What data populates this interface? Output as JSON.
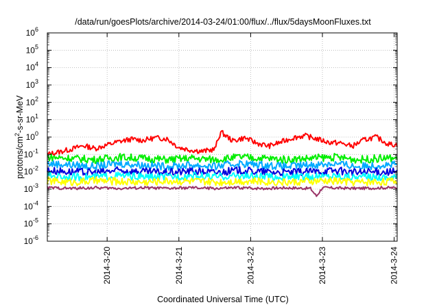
{
  "chart_data": {
    "type": "line",
    "title": "/data/run/goesPlots/archive/2014-03-24/01:00/flux/../flux/5daysMoonFluxes.txt",
    "xlabel": "Coordinated Universal Time (UTC)",
    "ylabel": {
      "base": "protons/cm",
      "sup": "2",
      "rest": "-s-sr-MeV"
    },
    "y_scale": "log",
    "ylim": [
      1e-06,
      1000000.0
    ],
    "x_range_days": [
      "2014-03-19 04:00",
      "2014-03-24 01:00"
    ],
    "y_ticks": [
      {
        "value": 1e-06,
        "base": "10",
        "exp": "-6"
      },
      {
        "value": 1e-05,
        "base": "10",
        "exp": "-5"
      },
      {
        "value": 0.0001,
        "base": "10",
        "exp": "-4"
      },
      {
        "value": 0.001,
        "base": "10",
        "exp": "-3"
      },
      {
        "value": 0.01,
        "base": "10",
        "exp": "-2"
      },
      {
        "value": 0.1,
        "base": "10",
        "exp": "-1"
      },
      {
        "value": 1.0,
        "base": "10",
        "exp": "0"
      },
      {
        "value": 10.0,
        "base": "10",
        "exp": "1"
      },
      {
        "value": 100.0,
        "base": "10",
        "exp": "2"
      },
      {
        "value": 1000.0,
        "base": "10",
        "exp": "3"
      },
      {
        "value": 10000.0,
        "base": "10",
        "exp": "4"
      },
      {
        "value": 100000.0,
        "base": "10",
        "exp": "5"
      },
      {
        "value": 1000000.0,
        "base": "10",
        "exp": "6"
      }
    ],
    "x_ticks": [
      {
        "label": "2014-3-20",
        "date": "2014-03-20"
      },
      {
        "label": "2014-3-21",
        "date": "2014-03-21"
      },
      {
        "label": "2014-3-22",
        "date": "2014-03-22"
      },
      {
        "label": "2014-3-23",
        "date": "2014-03-23"
      },
      {
        "label": "2014-3-24",
        "date": "2014-03-24"
      }
    ],
    "grid": true,
    "series": [
      {
        "color": "#ff0000",
        "points": [
          [
            "2014-03-19 04:00",
            0.1
          ],
          [
            "2014-03-19 08:00",
            0.14
          ],
          [
            "2014-03-19 12:00",
            0.2
          ],
          [
            "2014-03-19 16:00",
            0.32
          ],
          [
            "2014-03-19 20:00",
            0.22
          ],
          [
            "2014-03-20 00:00",
            0.35
          ],
          [
            "2014-03-20 04:00",
            0.55
          ],
          [
            "2014-03-20 08:00",
            0.75
          ],
          [
            "2014-03-20 12:00",
            0.65
          ],
          [
            "2014-03-20 16:00",
            0.9
          ],
          [
            "2014-03-20 20:00",
            0.8
          ],
          [
            "2014-03-21 00:00",
            0.25
          ],
          [
            "2014-03-21 04:00",
            0.18
          ],
          [
            "2014-03-21 08:00",
            0.15
          ],
          [
            "2014-03-21 12:00",
            0.2
          ],
          [
            "2014-03-21 14:00",
            2.0
          ],
          [
            "2014-03-21 18:00",
            0.6
          ],
          [
            "2014-03-21 22:00",
            0.9
          ],
          [
            "2014-03-22 02:00",
            0.45
          ],
          [
            "2014-03-22 06:00",
            0.3
          ],
          [
            "2014-03-22 10:00",
            0.5
          ],
          [
            "2014-03-22 14:00",
            0.9
          ],
          [
            "2014-03-22 18:00",
            1.2
          ],
          [
            "2014-03-22 22:00",
            0.8
          ],
          [
            "2014-03-23 02:00",
            0.5
          ],
          [
            "2014-03-23 06:00",
            0.45
          ],
          [
            "2014-03-23 10:00",
            0.3
          ],
          [
            "2014-03-23 14:00",
            0.7
          ],
          [
            "2014-03-23 18:00",
            1.0
          ],
          [
            "2014-03-23 22:00",
            0.4
          ],
          [
            "2014-03-24 01:00",
            0.35
          ]
        ]
      },
      {
        "color": "#00ee00",
        "points": [
          [
            "2014-03-19 04:00",
            0.07
          ],
          [
            "2014-03-19 12:00",
            0.06
          ],
          [
            "2014-03-19 20:00",
            0.05
          ],
          [
            "2014-03-20 04:00",
            0.07
          ],
          [
            "2014-03-20 12:00",
            0.06
          ],
          [
            "2014-03-20 20:00",
            0.05
          ],
          [
            "2014-03-21 04:00",
            0.06
          ],
          [
            "2014-03-21 12:00",
            0.05
          ],
          [
            "2014-03-21 20:00",
            0.07
          ],
          [
            "2014-03-22 04:00",
            0.06
          ],
          [
            "2014-03-22 12:00",
            0.05
          ],
          [
            "2014-03-22 20:00",
            0.06
          ],
          [
            "2014-03-23 04:00",
            0.07
          ],
          [
            "2014-03-23 12:00",
            0.05
          ],
          [
            "2014-03-23 20:00",
            0.06
          ],
          [
            "2014-03-24 01:00",
            0.06
          ]
        ]
      },
      {
        "color": "#00aaff",
        "points": [
          [
            "2014-03-19 04:00",
            0.03
          ],
          [
            "2014-03-19 12:00",
            0.025
          ],
          [
            "2014-03-19 20:00",
            0.02
          ],
          [
            "2014-03-20 04:00",
            0.03
          ],
          [
            "2014-03-20 12:00",
            0.025
          ],
          [
            "2014-03-20 20:00",
            0.02
          ],
          [
            "2014-03-21 04:00",
            0.025
          ],
          [
            "2014-03-21 12:00",
            0.02
          ],
          [
            "2014-03-21 20:00",
            0.03
          ],
          [
            "2014-03-22 04:00",
            0.025
          ],
          [
            "2014-03-22 12:00",
            0.02
          ],
          [
            "2014-03-22 20:00",
            0.025
          ],
          [
            "2014-03-23 04:00",
            0.03
          ],
          [
            "2014-03-23 12:00",
            0.02
          ],
          [
            "2014-03-23 20:00",
            0.025
          ],
          [
            "2014-03-24 01:00",
            0.025
          ]
        ]
      },
      {
        "color": "#0000dd",
        "points": [
          [
            "2014-03-19 04:00",
            0.012
          ],
          [
            "2014-03-19 12:00",
            0.01
          ],
          [
            "2014-03-19 20:00",
            0.009
          ],
          [
            "2014-03-20 04:00",
            0.012
          ],
          [
            "2014-03-20 12:00",
            0.01
          ],
          [
            "2014-03-20 20:00",
            0.009
          ],
          [
            "2014-03-21 04:00",
            0.011
          ],
          [
            "2014-03-21 12:00",
            0.009
          ],
          [
            "2014-03-21 20:00",
            0.012
          ],
          [
            "2014-03-22 04:00",
            0.01
          ],
          [
            "2014-03-22 12:00",
            0.009
          ],
          [
            "2014-03-22 20:00",
            0.01
          ],
          [
            "2014-03-23 04:00",
            0.012
          ],
          [
            "2014-03-23 12:00",
            0.009
          ],
          [
            "2014-03-23 20:00",
            0.01
          ],
          [
            "2014-03-24 01:00",
            0.01
          ]
        ]
      },
      {
        "color": "#00ffff",
        "points": [
          [
            "2014-03-19 04:00",
            0.006
          ],
          [
            "2014-03-19 12:00",
            0.005
          ],
          [
            "2014-03-19 20:00",
            0.005
          ],
          [
            "2014-03-20 04:00",
            0.006
          ],
          [
            "2014-03-20 12:00",
            0.005
          ],
          [
            "2014-03-20 20:00",
            0.005
          ],
          [
            "2014-03-21 04:00",
            0.006
          ],
          [
            "2014-03-21 12:00",
            0.005
          ],
          [
            "2014-03-21 20:00",
            0.006
          ],
          [
            "2014-03-22 04:00",
            0.005
          ],
          [
            "2014-03-22 12:00",
            0.005
          ],
          [
            "2014-03-22 20:00",
            0.005
          ],
          [
            "2014-03-23 04:00",
            0.006
          ],
          [
            "2014-03-23 12:00",
            0.005
          ],
          [
            "2014-03-23 20:00",
            0.005
          ],
          [
            "2014-03-24 01:00",
            0.005
          ]
        ]
      },
      {
        "color": "#ffff00",
        "points": [
          [
            "2014-03-19 04:00",
            0.003
          ],
          [
            "2014-03-19 12:00",
            0.0025
          ],
          [
            "2014-03-19 20:00",
            0.003
          ],
          [
            "2014-03-20 04:00",
            0.0028
          ],
          [
            "2014-03-20 12:00",
            0.0025
          ],
          [
            "2014-03-20 20:00",
            0.003
          ],
          [
            "2014-03-21 04:00",
            0.0028
          ],
          [
            "2014-03-21 12:00",
            0.0025
          ],
          [
            "2014-03-21 20:00",
            0.003
          ],
          [
            "2014-03-22 04:00",
            0.0028
          ],
          [
            "2014-03-22 12:00",
            0.0025
          ],
          [
            "2014-03-22 20:00",
            0.0028
          ],
          [
            "2014-03-23 04:00",
            0.003
          ],
          [
            "2014-03-23 12:00",
            0.0025
          ],
          [
            "2014-03-23 20:00",
            0.0028
          ],
          [
            "2014-03-24 01:00",
            0.0028
          ]
        ]
      },
      {
        "color": "#993366",
        "points": [
          [
            "2014-03-19 04:00",
            0.0012
          ],
          [
            "2014-03-19 12:00",
            0.0011
          ],
          [
            "2014-03-19 20:00",
            0.0012
          ],
          [
            "2014-03-20 04:00",
            0.0011
          ],
          [
            "2014-03-20 12:00",
            0.0012
          ],
          [
            "2014-03-20 20:00",
            0.0011
          ],
          [
            "2014-03-21 04:00",
            0.0012
          ],
          [
            "2014-03-21 12:00",
            0.0011
          ],
          [
            "2014-03-21 20:00",
            0.0012
          ],
          [
            "2014-03-22 04:00",
            0.0011
          ],
          [
            "2014-03-22 12:00",
            0.0012
          ],
          [
            "2014-03-22 20:00",
            0.0011
          ],
          [
            "2014-03-22 22:00",
            0.0004
          ],
          [
            "2014-03-23 00:00",
            0.0012
          ],
          [
            "2014-03-23 12:00",
            0.0011
          ],
          [
            "2014-03-23 20:00",
            0.0012
          ],
          [
            "2014-03-24 01:00",
            0.0012
          ]
        ]
      }
    ]
  }
}
